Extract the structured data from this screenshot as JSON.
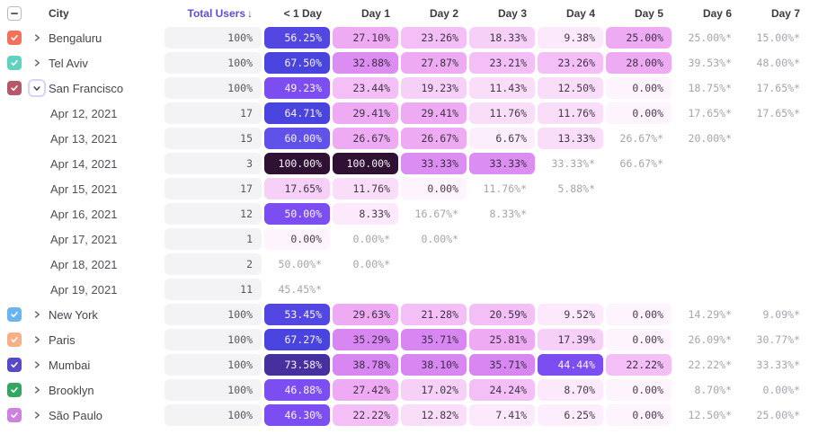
{
  "columns": [
    "City",
    "Total Users",
    "< 1 Day",
    "Day 1",
    "Day 2",
    "Day 3",
    "Day 4",
    "Day 5",
    "Day 6",
    "Day 7"
  ],
  "sort": {
    "column": "Total Users",
    "direction": "desc",
    "arrow": "↓"
  },
  "select_all": {
    "state": "indeterminate"
  },
  "colors": {
    "accent": "#5b4fe3",
    "users_bar_bg": "#f3f3f5",
    "starred_text": "#a6a3ae",
    "header_text": "#3b3b45",
    "label_text": "#45454f"
  },
  "heatmap_scale": [
    {
      "min": 90,
      "bg": "#2f1133",
      "fg": "#f7f2fa"
    },
    {
      "min": 70,
      "bg": "#46309e",
      "fg": "#f7f2fa"
    },
    {
      "min": 62,
      "bg": "#4a44df",
      "fg": "#f7f2fa"
    },
    {
      "min": 58,
      "bg": "#6052e8",
      "fg": "#f7f2fa"
    },
    {
      "min": 51,
      "bg": "#5347e2",
      "fg": "#f7f2fa"
    },
    {
      "min": 42,
      "bg": "#7c4ef2",
      "fg": "#f9f4fc"
    },
    {
      "min": 34,
      "bg": "#d786f2",
      "fg": "#3c3044"
    },
    {
      "min": 30,
      "bg": "#dc8df2",
      "fg": "#3c3044"
    },
    {
      "min": 24.5,
      "bg": "#eeabf4",
      "fg": "#3e3346"
    },
    {
      "min": 20.5,
      "bg": "#f4bff7",
      "fg": "#3e3346"
    },
    {
      "min": 16,
      "bg": "#f7d0f8",
      "fg": "#413748"
    },
    {
      "min": 10.5,
      "bg": "#fadef9",
      "fg": "#43394a"
    },
    {
      "min": 7,
      "bg": "#fce9fb",
      "fg": "#453b4c"
    },
    {
      "min": 4,
      "bg": "#fceefc",
      "fg": "#453b4c"
    },
    {
      "min": 0,
      "bg": "#fdf4fd",
      "fg": "#473d4e"
    }
  ],
  "rows": [
    {
      "type": "city",
      "label": "Bengaluru",
      "checkbox_color": "#f1715b",
      "checked": true,
      "expanded": false,
      "users": "100%",
      "cells": [
        "56.25%",
        "27.10%",
        "23.26%",
        "18.33%",
        "9.38%",
        "25.00%",
        "25.00%*",
        "15.00%*"
      ]
    },
    {
      "type": "city",
      "label": "Tel Aviv",
      "checkbox_color": "#63d1c0",
      "checked": true,
      "expanded": false,
      "users": "100%",
      "cells": [
        "67.50%",
        "32.88%",
        "27.87%",
        "23.21%",
        "23.26%",
        "28.00%",
        "39.53%*",
        "48.00%*"
      ]
    },
    {
      "type": "city",
      "label": "San Francisco",
      "checkbox_color": "#b55869",
      "checked": true,
      "expanded": true,
      "users": "100%",
      "cells": [
        "49.23%",
        "23.44%",
        "19.23%",
        "11.43%",
        "12.50%",
        "0.00%",
        "18.75%*",
        "17.65%*"
      ]
    },
    {
      "type": "date",
      "label": "Apr 12, 2021",
      "users": "17",
      "cells": [
        "64.71%",
        "29.41%",
        "29.41%",
        "11.76%",
        "11.76%",
        "0.00%",
        "17.65%*",
        "17.65%*"
      ]
    },
    {
      "type": "date",
      "label": "Apr 13, 2021",
      "users": "15",
      "cells": [
        "60.00%",
        "26.67%",
        "26.67%",
        "6.67%",
        "13.33%",
        "26.67%*",
        "20.00%*",
        ""
      ]
    },
    {
      "type": "date",
      "label": "Apr 14, 2021",
      "users": "3",
      "cells": [
        "100.00%",
        "100.00%",
        "33.33%",
        "33.33%",
        "33.33%*",
        "66.67%*",
        "",
        ""
      ]
    },
    {
      "type": "date",
      "label": "Apr 15, 2021",
      "users": "17",
      "cells": [
        "17.65%",
        "11.76%",
        "0.00%",
        "11.76%*",
        "5.88%*",
        "",
        "",
        ""
      ]
    },
    {
      "type": "date",
      "label": "Apr 16, 2021",
      "users": "12",
      "cells": [
        "50.00%",
        "8.33%",
        "16.67%*",
        "8.33%*",
        "",
        "",
        "",
        ""
      ]
    },
    {
      "type": "date",
      "label": "Apr 17, 2021",
      "users": "1",
      "cells": [
        "0.00%",
        "0.00%*",
        "0.00%*",
        "",
        "",
        "",
        "",
        ""
      ]
    },
    {
      "type": "date",
      "label": "Apr 18, 2021",
      "users": "2",
      "cells": [
        "50.00%*",
        "0.00%*",
        "",
        "",
        "",
        "",
        "",
        ""
      ]
    },
    {
      "type": "date",
      "label": "Apr 19, 2021",
      "users": "11",
      "cells": [
        "45.45%*",
        "",
        "",
        "",
        "",
        "",
        "",
        ""
      ]
    },
    {
      "type": "city",
      "label": "New York",
      "checkbox_color": "#6ab4ef",
      "checked": true,
      "expanded": false,
      "users": "100%",
      "cells": [
        "53.45%",
        "29.63%",
        "21.28%",
        "20.59%",
        "9.52%",
        "0.00%",
        "14.29%*",
        "9.09%*"
      ]
    },
    {
      "type": "city",
      "label": "Paris",
      "checkbox_color": "#f7b086",
      "checked": true,
      "expanded": false,
      "users": "100%",
      "cells": [
        "67.27%",
        "35.29%",
        "35.71%",
        "25.81%",
        "17.39%",
        "0.00%",
        "26.09%*",
        "30.77%*"
      ]
    },
    {
      "type": "city",
      "label": "Mumbai",
      "checkbox_color": "#5a49c6",
      "checked": true,
      "expanded": false,
      "users": "100%",
      "cells": [
        "73.58%",
        "38.78%",
        "38.10%",
        "35.71%",
        "44.44%",
        "22.22%",
        "22.22%*",
        "33.33%*"
      ]
    },
    {
      "type": "city",
      "label": "Brooklyn",
      "checkbox_color": "#35a564",
      "checked": true,
      "expanded": false,
      "users": "100%",
      "cells": [
        "46.88%",
        "27.42%",
        "17.02%",
        "24.24%",
        "8.70%",
        "0.00%",
        "8.70%*",
        "0.00%*"
      ]
    },
    {
      "type": "city",
      "label": "São Paulo",
      "checkbox_color": "#cd82df",
      "checked": true,
      "expanded": false,
      "users": "100%",
      "cells": [
        "46.30%",
        "22.22%",
        "12.82%",
        "7.41%",
        "6.25%",
        "0.00%",
        "12.50%*",
        "25.00%*"
      ]
    }
  ]
}
